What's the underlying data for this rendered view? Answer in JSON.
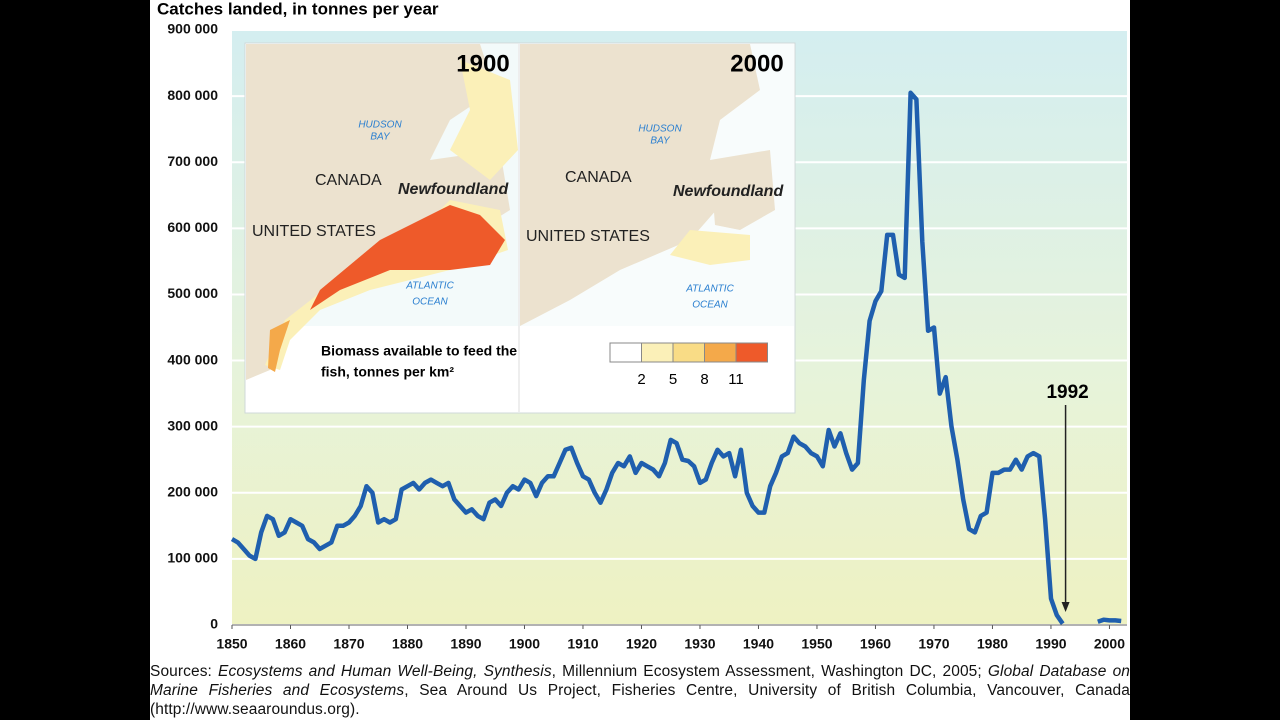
{
  "chart_data": {
    "type": "line",
    "title": "Catches landed, in tonnes per year",
    "x": [
      1850,
      1851,
      1852,
      1853,
      1854,
      1855,
      1856,
      1857,
      1858,
      1859,
      1860,
      1861,
      1862,
      1863,
      1864,
      1865,
      1866,
      1867,
      1868,
      1869,
      1870,
      1871,
      1872,
      1873,
      1874,
      1875,
      1876,
      1877,
      1878,
      1879,
      1880,
      1881,
      1882,
      1883,
      1884,
      1885,
      1886,
      1887,
      1888,
      1889,
      1890,
      1891,
      1892,
      1893,
      1894,
      1895,
      1896,
      1897,
      1898,
      1899,
      1900,
      1901,
      1902,
      1903,
      1904,
      1905,
      1906,
      1907,
      1908,
      1909,
      1910,
      1911,
      1912,
      1913,
      1914,
      1915,
      1916,
      1917,
      1918,
      1919,
      1920,
      1921,
      1922,
      1923,
      1924,
      1925,
      1926,
      1927,
      1928,
      1929,
      1930,
      1931,
      1932,
      1933,
      1934,
      1935,
      1936,
      1937,
      1938,
      1939,
      1940,
      1941,
      1942,
      1943,
      1944,
      1945,
      1946,
      1947,
      1948,
      1949,
      1950,
      1951,
      1952,
      1953,
      1954,
      1955,
      1956,
      1957,
      1958,
      1959,
      1960,
      1961,
      1962,
      1963,
      1964,
      1965,
      1966,
      1967,
      1968,
      1969,
      1970,
      1971,
      1972,
      1973,
      1974,
      1975,
      1976,
      1977,
      1978,
      1979,
      1980,
      1981,
      1982,
      1983,
      1984,
      1985,
      1986,
      1987,
      1988,
      1989,
      1990,
      1991,
      1992,
      1993,
      1994,
      1995,
      1996,
      1997,
      1998,
      1999,
      2000,
      2001,
      2002
    ],
    "series": [
      {
        "color": "#1f5fae",
        "values": [
          130000,
          125000,
          115000,
          105000,
          100000,
          140000,
          165000,
          160000,
          135000,
          140000,
          160000,
          155000,
          150000,
          130000,
          125000,
          115000,
          120000,
          125000,
          150000,
          150000,
          155000,
          165000,
          180000,
          210000,
          200000,
          155000,
          160000,
          155000,
          160000,
          205000,
          210000,
          215000,
          205000,
          215000,
          220000,
          215000,
          210000,
          215000,
          190000,
          180000,
          170000,
          175000,
          165000,
          160000,
          185000,
          190000,
          180000,
          200000,
          210000,
          205000,
          220000,
          215000,
          195000,
          215000,
          225000,
          225000,
          245000,
          265000,
          268000,
          245000,
          225000,
          220000,
          200000,
          185000,
          205000,
          230000,
          245000,
          240000,
          255000,
          230000,
          245000,
          240000,
          235000,
          225000,
          245000,
          280000,
          275000,
          250000,
          248000,
          240000,
          215000,
          220000,
          245000,
          265000,
          255000,
          260000,
          225000,
          265000,
          200000,
          180000,
          170000,
          170000,
          210000,
          230000,
          255000,
          260000,
          285000,
          275000,
          270000,
          260000,
          255000,
          240000,
          295000,
          270000,
          290000,
          260000,
          235000,
          245000,
          370000,
          460000,
          490000,
          505000,
          590000,
          590000,
          530000,
          525000,
          805000,
          795000,
          580000,
          445000,
          450000,
          350000,
          375000,
          300000,
          250000,
          190000,
          145000,
          140000,
          165000,
          170000,
          230000,
          230000,
          235000,
          235000,
          250000,
          235000,
          255000,
          260000,
          255000,
          160000,
          40000,
          15000,
          2000,
          null,
          null,
          null,
          null,
          null,
          5000,
          8000,
          7000,
          7000,
          6000
        ]
      }
    ],
    "xlim": [
      1850,
      2003
    ],
    "ylim": [
      0,
      900000
    ],
    "xticks": [
      1850,
      1860,
      1870,
      1880,
      1890,
      1900,
      1910,
      1920,
      1930,
      1940,
      1950,
      1960,
      1970,
      1980,
      1990,
      2000
    ],
    "yticks": [
      0,
      {
        "value": 100000,
        "label": "100 000"
      },
      {
        "value": 200000,
        "label": "200 000"
      },
      {
        "value": 300000,
        "label": "300 000"
      },
      {
        "value": 400000,
        "label": "400 000"
      },
      {
        "value": 500000,
        "label": "500 000"
      },
      {
        "value": 600000,
        "label": "600 000"
      },
      {
        "value": 700000,
        "label": "700 000"
      },
      {
        "value": 800000,
        "label": "800 000"
      },
      {
        "value": 900000,
        "label": "900 000"
      }
    ],
    "grid": true,
    "annotation": {
      "text": "1992",
      "x": 1992.5
    },
    "inset": {
      "maps": [
        {
          "year": "1900",
          "canada": "CANADA",
          "newfoundland": "Newfoundland",
          "us": "UNITED STATES",
          "hudson": [
            "HUDSON",
            "BAY"
          ],
          "ocean": [
            "ATLANTIC",
            "OCEAN"
          ]
        },
        {
          "year": "2000",
          "canada": "CANADA",
          "newfoundland": "Newfoundland",
          "us": "UNITED STATES",
          "hudson": [
            "HUDSON",
            "BAY"
          ],
          "ocean": [
            "ATLANTIC",
            "OCEAN"
          ]
        }
      ],
      "legend_title": [
        "Biomass available to feed the",
        "fish, tonnes per km²"
      ],
      "scale_labels": [
        2,
        5,
        8,
        11
      ],
      "scale_colors": [
        "#ffffff",
        "#fbf0b8",
        "#f9dc86",
        "#f4a94a",
        "#ee5a2a"
      ]
    },
    "source": [
      "Sources: ",
      "Ecosystems and Human Well-Being, Synthesis",
      ", Millennium Ecosystem Assessment, Washington DC, 2005; ",
      "Global Database on Marine Fisheries and Ecosystems",
      ", Sea Around Us Project, Fisheries Centre, University of British Columbia, Vancouver, Canada (http://www.seaaroundus.org)."
    ]
  }
}
